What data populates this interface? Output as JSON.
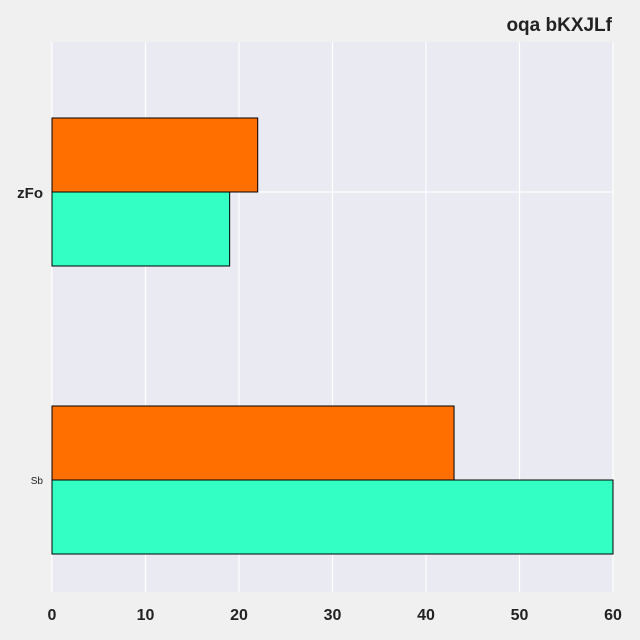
{
  "chart_data": {
    "type": "bar",
    "orientation": "horizontal",
    "title": "oqa bKXJLf",
    "xlabel": "",
    "ylabel": "",
    "categories": [
      "zFo",
      "Sb"
    ],
    "series": [
      {
        "color": "#ff6f00",
        "values": [
          22,
          43
        ]
      },
      {
        "color": "#33ffc4",
        "values": [
          19,
          60
        ]
      }
    ],
    "xlim": [
      0,
      60
    ],
    "xticks": [
      0,
      10,
      20,
      30,
      40,
      50,
      60
    ],
    "grid": true,
    "legend": "none",
    "background": "#eaeaf2",
    "page_background": "#f0f0f0"
  }
}
